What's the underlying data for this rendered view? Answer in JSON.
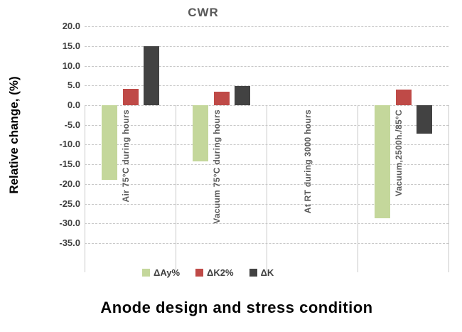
{
  "chart_data": {
    "type": "bar",
    "title": "CWR",
    "xlabel": "Anode design and stress condition",
    "ylabel": "Relative change, (%)",
    "categories": [
      "Air 75°C during hours",
      "Vacuum 75°C during hours",
      "At RT during 3000 hours",
      "Vacuum,2500h./85°C"
    ],
    "series": [
      {
        "name": "ΔAy%",
        "color": "#c4d79b",
        "values": [
          -19.0,
          -14.3,
          0,
          -28.7
        ]
      },
      {
        "name": "ΔK2%",
        "color": "#bf4a47",
        "values": [
          4.2,
          3.5,
          0,
          4.0
        ]
      },
      {
        "name": "ΔK",
        "color": "#424242",
        "values": [
          15.0,
          4.8,
          0,
          -7.2
        ]
      }
    ],
    "ylim": [
      -35,
      20
    ],
    "yticks": [
      20,
      15,
      10,
      5,
      0,
      -5,
      -10,
      -15,
      -20,
      -25,
      -30,
      -35
    ],
    "ytick_labels": [
      "20.0",
      "15.0",
      "10.0",
      "5.0",
      "0.0",
      "-5.0",
      "-10.0",
      "-15.0",
      "-20.0",
      "-25.0",
      "-30.0",
      "-35.0"
    ],
    "grid": true,
    "legend_position": "bottom"
  }
}
